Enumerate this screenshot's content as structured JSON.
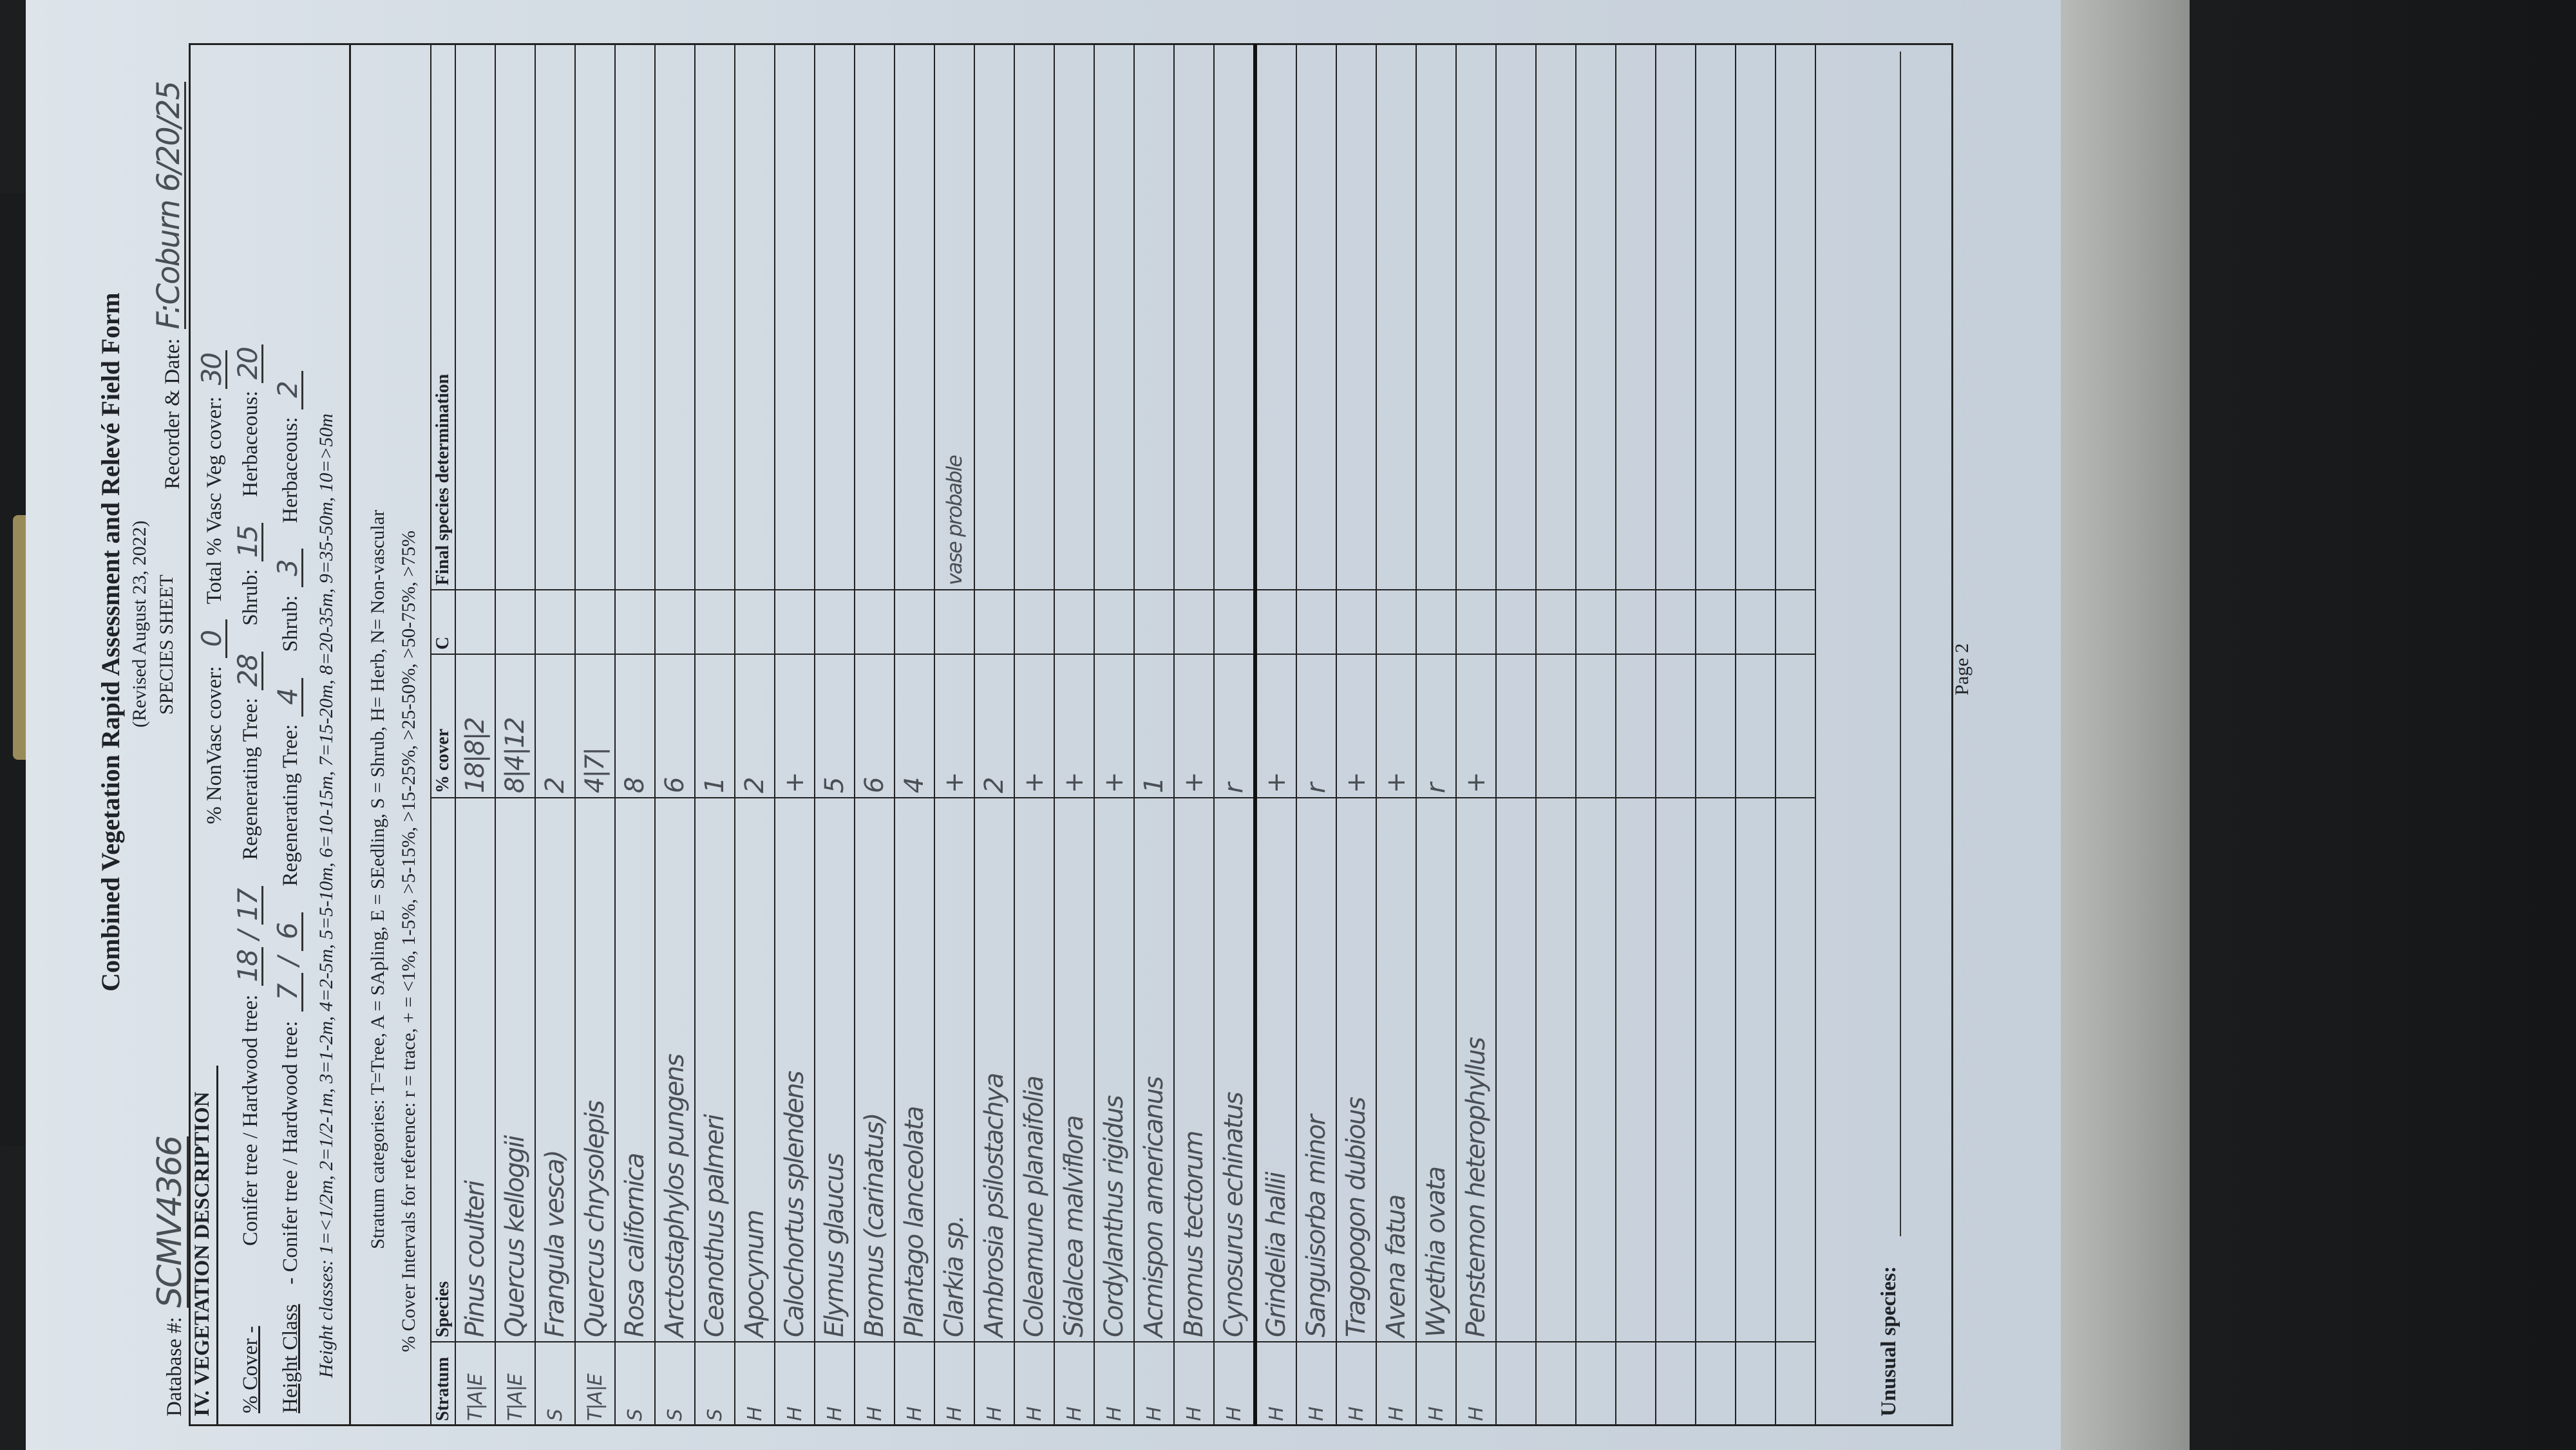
{
  "form": {
    "title": "Combined Vegetation Rapid Assessment and Relevé Field Form",
    "revised": "(Revised August 23, 2022)",
    "sheet": "SPECIES SHEET",
    "database_label": "Database #:",
    "database_value": "SCMV4366",
    "recorder_label": "Recorder & Date:",
    "recorder_value": "F:Coburn 6/20/25",
    "section": "IV.  VEGETATION DESCRIPTION",
    "nonvasc_label": "% NonVasc cover:",
    "nonvasc_value": "0",
    "totalvasc_label": "Total % Vasc Veg cover:",
    "totalvasc_value": "30",
    "cover_label": "% Cover -",
    "height_label": "Height Class",
    "conifer_cover_label": "Conifer tree / Hardwood tree:",
    "conifer_height_label": "- Conifer tree / Hardwood tree:",
    "cover": {
      "conifer": "18",
      "hardwood": "17",
      "regen": "28",
      "shrub": "15",
      "herb": "20"
    },
    "height": {
      "conifer": "7",
      "hardwood": "6",
      "regen": "4",
      "shrub": "3",
      "herb": "2"
    },
    "regen_label": "Regenerating Tree:",
    "shrub_label": "Shrub:",
    "herb_label": "Herbaceous:",
    "height_classes": "Height classes: 1=<1/2m, 2=1/2-1m, 3=1-2m, 4=2-5m, 5=5-10m, 6=10-15m, 7=15-20m, 8=20-35m, 9=35-50m, 10=>50m",
    "stratum_categories": "Stratum categories: T=Tree, A = SApling, E = SEedling, S = Shrub, H= Herb, N= Non-vascular",
    "cover_intervals": "% Cover Intervals for reference: r = trace,  + = <1%,  1-5%,  >5-15%,  >15-25%,  >25-50%,  >50-75%,  >75%",
    "columns": [
      "Stratum",
      "Species",
      "% cover",
      "C",
      "Final species determination"
    ],
    "unusual_label": "Unusual species:",
    "page": "Page 2"
  },
  "rows": [
    {
      "stratum": "T|A|E",
      "species": "Pinus coulteri",
      "cover": "18|8|2",
      "final": ""
    },
    {
      "stratum": "T|A|E",
      "species": "Quercus kelloggii",
      "cover": "8|4|12",
      "final": ""
    },
    {
      "stratum": "S",
      "species": "Frangula vesca)",
      "cover": "2",
      "final": ""
    },
    {
      "stratum": "T|A|E",
      "species": "Quercus chrysolepis",
      "cover": "4|7|",
      "final": ""
    },
    {
      "stratum": "S",
      "species": "Rosa californica",
      "cover": "8",
      "final": ""
    },
    {
      "stratum": "S",
      "species": "Arctostaphylos pungens",
      "cover": "6",
      "final": ""
    },
    {
      "stratum": "S",
      "species": "Ceanothus palmeri",
      "cover": "1",
      "final": ""
    },
    {
      "stratum": "H",
      "species": "Apocynum",
      "cover": "2",
      "final": ""
    },
    {
      "stratum": "H",
      "species": "Calochortus splendens",
      "cover": "+",
      "final": ""
    },
    {
      "stratum": "H",
      "species": "Elymus glaucus",
      "cover": "5",
      "final": ""
    },
    {
      "stratum": "H",
      "species": "Bromus (carinatus)",
      "cover": "6",
      "final": ""
    },
    {
      "stratum": "H",
      "species": "Plantago lanceolata",
      "cover": "4",
      "final": ""
    },
    {
      "stratum": "H",
      "species": "Clarkia sp.",
      "cover": "+",
      "final": "vase probable"
    },
    {
      "stratum": "H",
      "species": "Ambrosia psilostachya",
      "cover": "2",
      "final": ""
    },
    {
      "stratum": "H",
      "species": "Coleamune planaifolia",
      "cover": "+",
      "final": ""
    },
    {
      "stratum": "H",
      "species": "Sidalcea malviflora",
      "cover": "+",
      "final": ""
    },
    {
      "stratum": "H",
      "species": "Cordylanthus rigidus",
      "cover": "+",
      "final": ""
    },
    {
      "stratum": "H",
      "species": "Acmispon americanus",
      "cover": "1",
      "final": ""
    },
    {
      "stratum": "H",
      "species": "Bromus tectorum",
      "cover": "+",
      "final": ""
    },
    {
      "stratum": "H",
      "species": "Cynosurus echinatus",
      "cover": "r",
      "final": ""
    },
    {
      "stratum": "H",
      "species": "Grindelia hallii",
      "cover": "+",
      "final": ""
    },
    {
      "stratum": "H",
      "species": "Sanguisorba minor",
      "cover": "r",
      "final": ""
    },
    {
      "stratum": "H",
      "species": "Tragopogon dubious",
      "cover": "+",
      "final": ""
    },
    {
      "stratum": "H",
      "species": "Avena fatua",
      "cover": "+",
      "final": ""
    },
    {
      "stratum": "H",
      "species": "Wyethia ovata",
      "cover": "r",
      "final": ""
    },
    {
      "stratum": "H",
      "species": "Penstemon heterophyllus",
      "cover": "+",
      "final": ""
    }
  ]
}
